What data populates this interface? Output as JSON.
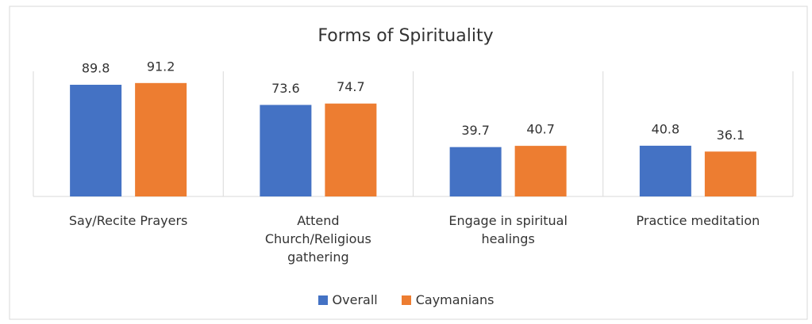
{
  "chart_data": {
    "type": "bar",
    "title": "Forms of Spirituality",
    "categories": [
      "Say/Recite Prayers",
      "Attend\nChurch/Religious\ngathering",
      "Engage in spiritual\nhealings",
      "Practice meditation"
    ],
    "series": [
      {
        "name": "Overall",
        "color": "#4472c4",
        "values": [
          89.8,
          73.6,
          39.7,
          40.8
        ]
      },
      {
        "name": "Caymanians",
        "color": "#ed7d31",
        "values": [
          91.2,
          74.7,
          40.7,
          36.1
        ]
      }
    ]
  }
}
